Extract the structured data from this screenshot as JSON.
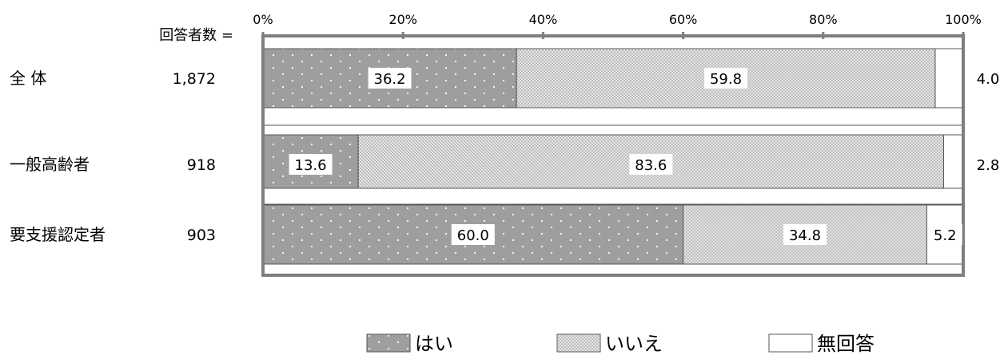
{
  "chart_data": {
    "type": "bar",
    "orientation": "horizontal",
    "stacked": true,
    "percent_scale": true,
    "count_header": "回答者数 =",
    "x_ticks": [
      "0%",
      "20%",
      "40%",
      "60%",
      "80%",
      "100%"
    ],
    "xlim": [
      0,
      100
    ],
    "categories": [
      "全 体",
      "一般高齢者",
      "要支援認定者"
    ],
    "respondent_counts": [
      "1,872",
      "918",
      "903"
    ],
    "series": [
      {
        "name": "はい",
        "values": [
          36.2,
          13.6,
          60.0
        ],
        "labels": [
          "36.2",
          "13.6",
          "60.0"
        ],
        "pattern": "sparse-dots",
        "color": "#9e9e9e"
      },
      {
        "name": "いいえ",
        "values": [
          59.8,
          83.6,
          34.8
        ],
        "labels": [
          "59.8",
          "83.6",
          "34.8"
        ],
        "pattern": "dense-dots",
        "color": "#d9d9d9"
      },
      {
        "name": "無回答",
        "values": [
          4.0,
          2.8,
          5.2
        ],
        "labels": [
          "4.0",
          "2.8",
          "5.2"
        ],
        "pattern": "none",
        "color": "#ffffff"
      }
    ],
    "legend_position": "bottom",
    "grid": false
  }
}
